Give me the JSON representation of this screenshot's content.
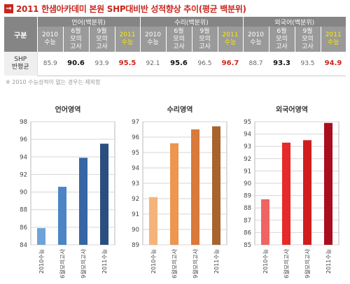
{
  "header": {
    "badge": "→",
    "title": "2011 한샘아카데미 본원 SHP대비반 성적향상 추이(평균 백분위)"
  },
  "table": {
    "corner": "구분",
    "groups": [
      "언어(백분위)",
      "수리(백분위)",
      "외국어(백분위)"
    ],
    "subheaders": [
      "2010\n수능",
      "6월\n모의\n고사",
      "9월\n모의\n고사",
      "2011\n수능"
    ],
    "row_label": "SHP\n반평균",
    "rows": [
      [
        "85.9",
        "90.6",
        "93.9",
        "95.5"
      ],
      [
        "92.1",
        "95.6",
        "96.5",
        "96.7"
      ],
      [
        "88.7",
        "93.3",
        "93.5",
        "94.9"
      ]
    ]
  },
  "note": "※ 2010 수능성적이 없는 경우는 제외함",
  "colors": {
    "lang": [
      "#6fa2d8",
      "#4c84c4",
      "#3666a4",
      "#2b4e80"
    ],
    "math": [
      "#f5b37a",
      "#ec9650",
      "#d9793a",
      "#a8642e"
    ],
    "eng": [
      "#f06464",
      "#e62a2a",
      "#d01e1e",
      "#a80e1e"
    ]
  },
  "chart_data": [
    {
      "type": "bar",
      "title": "언어영역",
      "categories": [
        "2010수능",
        "6월모의고사",
        "9월모의고사",
        "2011수능"
      ],
      "values": [
        85.9,
        90.6,
        93.9,
        95.5
      ],
      "ylim": [
        84,
        98
      ],
      "yticks": [
        84,
        86,
        88,
        90,
        92,
        94,
        96,
        98
      ],
      "grid": true
    },
    {
      "type": "bar",
      "title": "수리영역",
      "categories": [
        "2010수능",
        "6월모의고사",
        "9월모의고사",
        "2011수능"
      ],
      "values": [
        92.1,
        95.6,
        96.5,
        96.7
      ],
      "ylim": [
        89,
        97
      ],
      "yticks": [
        89,
        90,
        91,
        92,
        93,
        94,
        95,
        96,
        97
      ],
      "grid": true
    },
    {
      "type": "bar",
      "title": "외국어영역",
      "categories": [
        "2010수능",
        "6월모의고사",
        "9월모의고사",
        "2011수능"
      ],
      "values": [
        88.7,
        93.3,
        93.5,
        94.9
      ],
      "ylim": [
        85,
        95
      ],
      "yticks": [
        85,
        86,
        87,
        88,
        89,
        90,
        91,
        92,
        93,
        94,
        95
      ],
      "grid": true
    }
  ]
}
